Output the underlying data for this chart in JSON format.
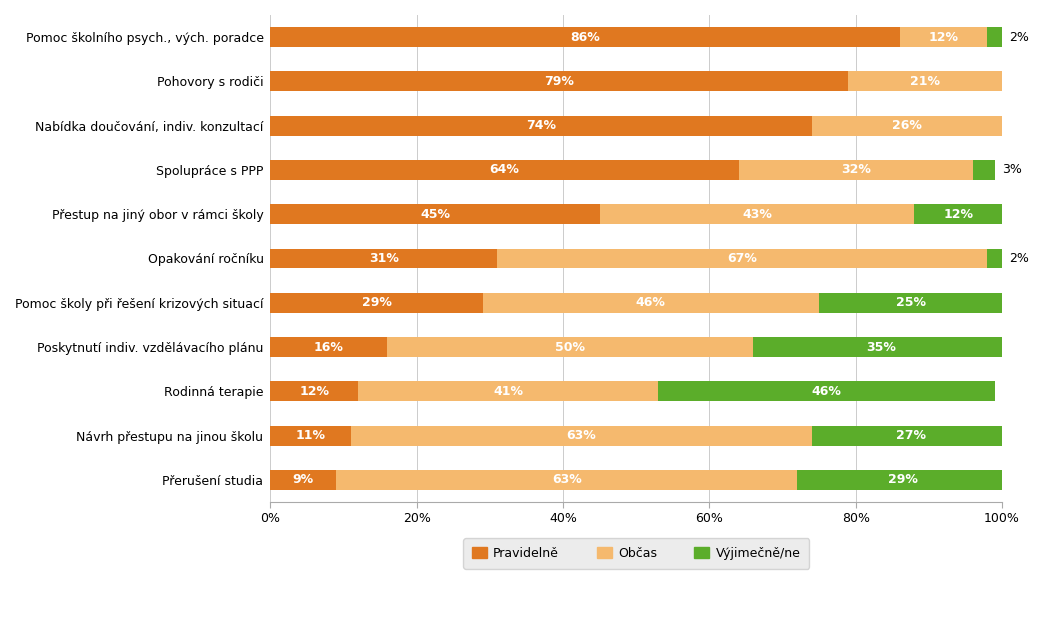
{
  "categories": [
    "Pomoc školního psych., vých. poradce",
    "Pohovory s rodiči",
    "Nabídka doučování, indiv. konzultací",
    "Spolupráce s PPP",
    "Přestup na jiný obor v rámci školy",
    "Opakování ročníku",
    "Pomoc školy při řešení krizových situací",
    "Poskytnutí indiv. vzdělávacího plánu",
    "Rodinná terapie",
    "Návrh přestupu na jinou školu",
    "Přerušení studia"
  ],
  "pravidelne": [
    86,
    79,
    74,
    64,
    45,
    31,
    29,
    16,
    12,
    11,
    9
  ],
  "obcas": [
    12,
    21,
    26,
    32,
    43,
    67,
    46,
    50,
    41,
    63,
    63
  ],
  "vyjimecne": [
    2,
    0,
    0,
    3,
    12,
    2,
    25,
    35,
    46,
    27,
    29
  ],
  "color_pravidelne": "#E07820",
  "color_obcas": "#F5B96E",
  "color_vyjimecne": "#5BAD2A",
  "legend_labels": [
    "Pravidelně",
    "Občas",
    "Výjimečně/ne"
  ],
  "background_color": "#ffffff",
  "legend_bg": "#e8e8e8",
  "bar_height": 0.45,
  "label_fontsize": 9,
  "tick_fontsize": 9,
  "category_fontsize": 9,
  "outside_label_threshold": 5
}
